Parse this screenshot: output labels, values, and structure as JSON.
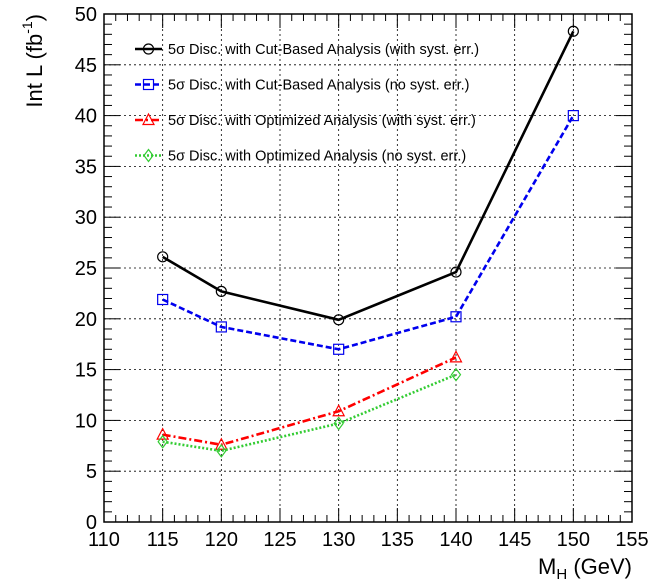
{
  "chart_data": {
    "type": "line",
    "title": "",
    "xlabel": "M",
    "xlabel_sub": "H",
    "xlabel_unit": " (GeV)",
    "ylabel": "Int L (fb",
    "ylabel_sup": "-1",
    "ylabel_close": ")",
    "xlim": [
      110,
      155
    ],
    "ylim": [
      0,
      50
    ],
    "x_ticks": [
      110,
      115,
      120,
      125,
      130,
      135,
      140,
      145,
      150,
      155
    ],
    "y_ticks": [
      0,
      5,
      10,
      15,
      20,
      25,
      30,
      35,
      40,
      45,
      50
    ],
    "grid": true,
    "legend_position": "top-left",
    "series": [
      {
        "name": "5σ Disc. with Cut-Based Analysis (with syst. err.)",
        "color": "#000000",
        "line_style": "solid",
        "marker": "open-circle",
        "x": [
          115,
          120,
          130,
          140,
          150
        ],
        "y": [
          26.1,
          22.7,
          19.9,
          24.6,
          48.3
        ]
      },
      {
        "name": "5σ Disc. with Cut-Based Analysis (no syst. err.)",
        "color": "#0000ee",
        "line_style": "dashed",
        "marker": "open-square",
        "x": [
          115,
          120,
          130,
          140,
          150
        ],
        "y": [
          21.9,
          19.2,
          17.0,
          20.2,
          40.0
        ]
      },
      {
        "name": "5σ Disc. with Optimized Analysis (with syst. err.)",
        "color": "#ff0000",
        "line_style": "dash-dot",
        "marker": "open-triangle",
        "x": [
          115,
          120,
          140
        ],
        "y": [
          8.6,
          7.6,
          16.2
        ],
        "x_full": [
          115,
          120,
          130,
          140
        ],
        "y_full": [
          8.6,
          7.6,
          10.9,
          16.2
        ]
      },
      {
        "name": "5σ Disc. with Optimized Analysis (no syst. err.)",
        "color": "#33cc33",
        "line_style": "dotted",
        "marker": "open-diamond",
        "x": [
          115,
          120,
          130,
          140
        ],
        "y": [
          7.9,
          7.0,
          9.7,
          14.5
        ]
      }
    ]
  }
}
